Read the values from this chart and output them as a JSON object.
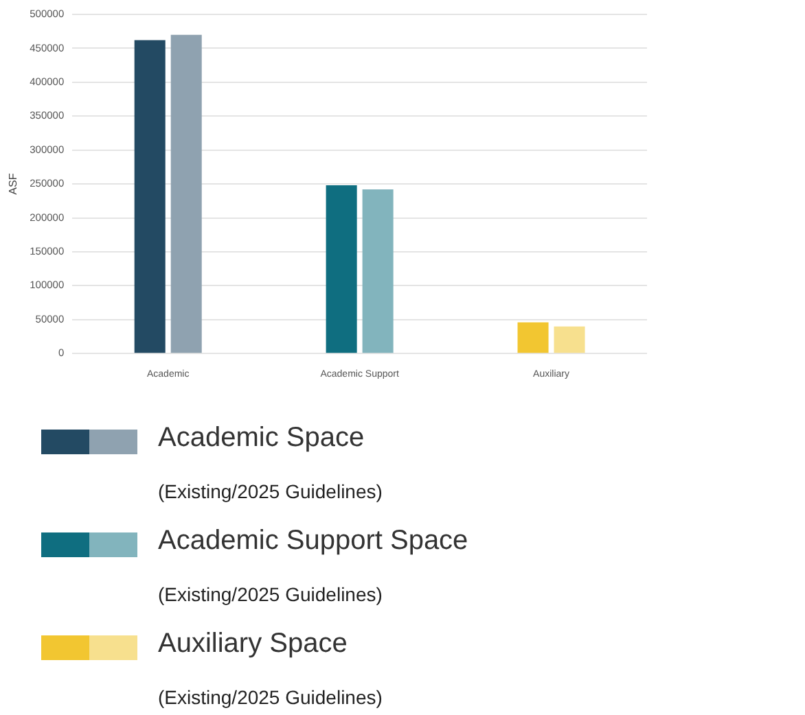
{
  "chart_data": {
    "type": "bar",
    "ylabel": "ASF",
    "categories": [
      "Academic",
      "Academic Support",
      "Auxiliary"
    ],
    "series": [
      {
        "colors": [
          "#234a63",
          "#0f6e80",
          "#f2c631"
        ],
        "values": [
          462000,
          248000,
          46000
        ]
      },
      {
        "colors": [
          "#8fa2b0",
          "#82b4bd",
          "#f7e08e"
        ],
        "values": [
          470000,
          242000,
          40000
        ]
      }
    ],
    "ylim": [
      0,
      500000
    ],
    "yticks": [
      0,
      50000,
      100000,
      150000,
      200000,
      250000,
      300000,
      350000,
      400000,
      450000,
      500000
    ],
    "grid": "y",
    "legend": false,
    "annotations": [
      "Academic Space",
      "(Existing/2025 Guidelines)",
      "Academic Support Space",
      "(Existing/2025 Guidelines)",
      "Auxiliary Space",
      "(Existing/2025 Guidelines)"
    ]
  }
}
